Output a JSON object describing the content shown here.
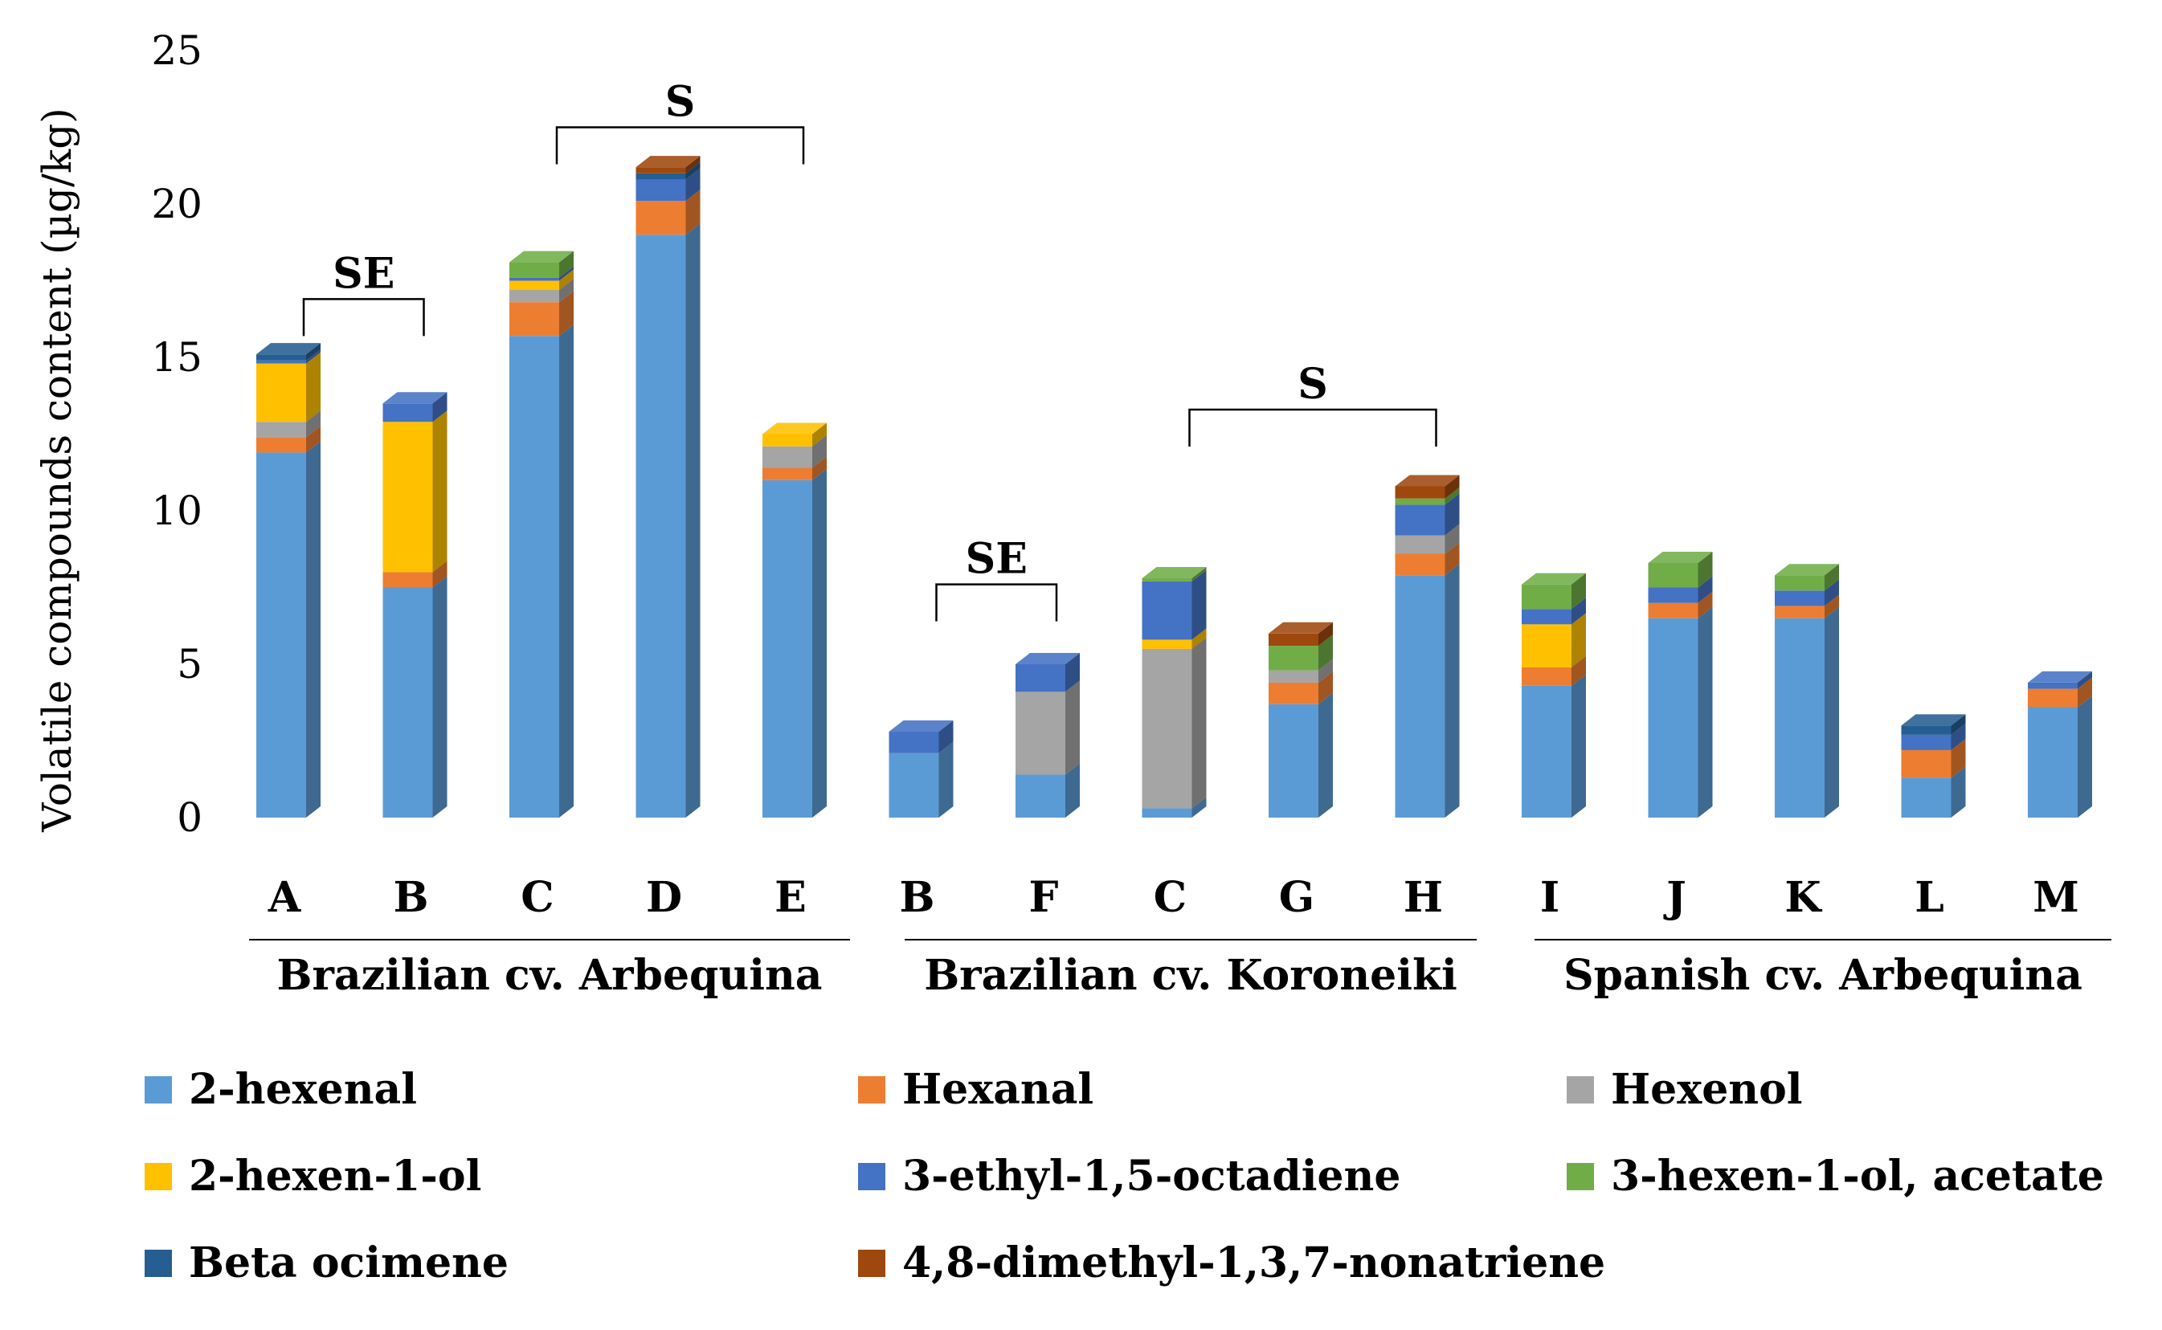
{
  "chart_data": {
    "type": "bar",
    "stacked": true,
    "ylabel": "Volatile compounds content (µg/kg)",
    "ylim": [
      0,
      25
    ],
    "yticks": [
      0,
      5,
      10,
      15,
      20,
      25
    ],
    "grid": false,
    "legend_position": "bottom",
    "categories": [
      "A",
      "B",
      "C",
      "D",
      "E",
      "B",
      "F",
      "C",
      "G",
      "H",
      "I",
      "J",
      "K",
      "L",
      "M"
    ],
    "groups": [
      {
        "label": "Brazilian cv. Arbequina",
        "from": 0,
        "to": 4
      },
      {
        "label": "Brazilian cv. Koroneiki",
        "from": 5,
        "to": 9
      },
      {
        "label": "Spanish cv. Arbequina",
        "from": 10,
        "to": 14
      }
    ],
    "brackets": [
      {
        "label": "SE",
        "from": 0,
        "to": 1,
        "height": 16.9
      },
      {
        "label": "S",
        "from": 2,
        "to": 4,
        "height": 22.5
      },
      {
        "label": "SE",
        "from": 5,
        "to": 6,
        "height": 7.6
      },
      {
        "label": "S",
        "from": 7,
        "to": 9,
        "height": 13.3
      }
    ],
    "series": [
      {
        "name": "2-hexenal",
        "color": "#5B9BD5",
        "values": [
          11.9,
          7.5,
          15.7,
          19.0,
          11.0,
          2.1,
          1.4,
          0.3,
          3.7,
          7.9,
          4.3,
          6.5,
          6.5,
          1.3,
          3.6
        ]
      },
      {
        "name": "Hexanal",
        "color": "#ED7D31",
        "values": [
          0.5,
          0.5,
          1.1,
          1.1,
          0.4,
          0.0,
          0.0,
          0.0,
          0.7,
          0.7,
          0.6,
          0.5,
          0.4,
          0.9,
          0.6
        ]
      },
      {
        "name": "Hexenol",
        "color": "#A5A5A5",
        "values": [
          0.5,
          0.0,
          0.4,
          0.0,
          0.7,
          0.0,
          2.7,
          5.2,
          0.4,
          0.6,
          0.0,
          0.0,
          0.0,
          0.0,
          0.0
        ]
      },
      {
        "name": "2-hexen-1-ol",
        "color": "#FFC000",
        "values": [
          1.9,
          4.9,
          0.3,
          0.0,
          0.4,
          0.0,
          0.0,
          0.3,
          0.0,
          0.0,
          1.4,
          0.0,
          0.0,
          0.0,
          0.0
        ]
      },
      {
        "name": "3-ethyl-1,5-octadiene",
        "color": "#4472C4",
        "values": [
          0.1,
          0.6,
          0.1,
          0.7,
          0.0,
          0.7,
          0.9,
          1.9,
          0.0,
          1.0,
          0.5,
          0.5,
          0.5,
          0.5,
          0.2
        ]
      },
      {
        "name": "3-hexen-1-ol, acetate",
        "color": "#70AD47",
        "values": [
          0.0,
          0.0,
          0.5,
          0.0,
          0.0,
          0.0,
          0.0,
          0.1,
          0.8,
          0.2,
          0.8,
          0.8,
          0.5,
          0.0,
          0.0
        ]
      },
      {
        "name": "Beta ocimene",
        "color": "#255E91",
        "values": [
          0.2,
          0.0,
          0.0,
          0.2,
          0.0,
          0.0,
          0.0,
          0.0,
          0.0,
          0.0,
          0.0,
          0.0,
          0.0,
          0.3,
          0.0
        ]
      },
      {
        "name": "4,8-dimethyl-1,3,7-nonatriene",
        "color": "#9E480E",
        "values": [
          0.0,
          0.0,
          0.0,
          0.2,
          0.0,
          0.0,
          0.0,
          0.0,
          0.4,
          0.4,
          0.0,
          0.0,
          0.0,
          0.0,
          0.0
        ]
      }
    ]
  }
}
